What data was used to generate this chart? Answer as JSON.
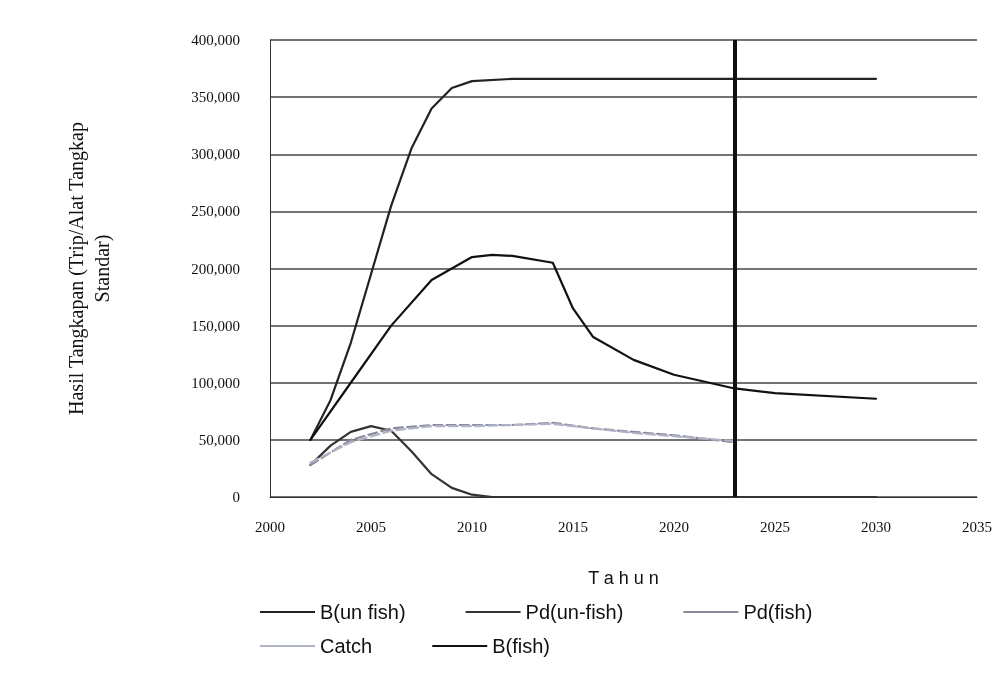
{
  "chart_data": {
    "type": "line",
    "xlabel": "T a h u n",
    "ylabel": "Hasil Tangkapan (Trip/Alat Tangkap\nStandar)",
    "xlim": [
      2000,
      2035
    ],
    "xticks": [
      2000,
      2005,
      2010,
      2015,
      2020,
      2025,
      2030,
      2035
    ],
    "ylim": [
      0,
      400000
    ],
    "yticks": [
      {
        "value": 0,
        "label": "0"
      },
      {
        "value": 50000,
        "label": "50,000"
      },
      {
        "value": 100000,
        "label": "100,000"
      },
      {
        "value": 150000,
        "label": "150,000"
      },
      {
        "value": 200000,
        "label": "200,000"
      },
      {
        "value": 250000,
        "label": "250,000"
      },
      {
        "value": 300000,
        "label": "300,000"
      },
      {
        "value": 350000,
        "label": "350,000"
      },
      {
        "value": 400000,
        "label": "400,000"
      }
    ],
    "grid": "y",
    "legend": "bottom",
    "marker": "none",
    "ref_lines": [
      {
        "axis": "x",
        "value": 2023,
        "color": "#111111"
      }
    ],
    "series": [
      {
        "name": "B(un fish)",
        "color": "#222222",
        "line_style": "solid",
        "x": [
          2002,
          2003,
          2004,
          2005,
          2006,
          2007,
          2008,
          2009,
          2010,
          2012,
          2015,
          2020,
          2025,
          2030
        ],
        "values": [
          50000,
          85000,
          135000,
          195000,
          255000,
          305000,
          340000,
          358000,
          364000,
          366000,
          366000,
          366000,
          366000,
          366000
        ]
      },
      {
        "name": "Pd(un-fish)",
        "color": "#333333",
        "line_style": "solid",
        "x": [
          2002,
          2003,
          2004,
          2005,
          2006,
          2007,
          2008,
          2009,
          2010,
          2011,
          2015,
          2020,
          2025,
          2030
        ],
        "values": [
          28000,
          45000,
          57000,
          62000,
          58000,
          40000,
          20000,
          8000,
          2000,
          0,
          0,
          0,
          0,
          0
        ]
      },
      {
        "name": "Pd(fish)",
        "color": "#8a8a9a",
        "line_style": "dashed",
        "x": [
          2002,
          2004,
          2006,
          2008,
          2010,
          2012,
          2014,
          2016,
          2018,
          2020,
          2023
        ],
        "values": [
          28000,
          50000,
          60000,
          63000,
          63000,
          63000,
          65000,
          60000,
          57000,
          54000,
          48000
        ]
      },
      {
        "name": "Catch",
        "color": "#b0b4c8",
        "line_style": "dashed",
        "x": [
          2002,
          2004,
          2006,
          2008,
          2010,
          2014,
          2018,
          2023
        ],
        "values": [
          30000,
          48000,
          58000,
          62000,
          62000,
          64000,
          56000,
          49000
        ]
      },
      {
        "name": "B(fish)",
        "color": "#111111",
        "line_style": "solid",
        "x": [
          2002,
          2004,
          2006,
          2008,
          2010,
          2011,
          2012,
          2014,
          2015,
          2016,
          2018,
          2020,
          2023,
          2025,
          2030
        ],
        "values": [
          50000,
          100000,
          150000,
          190000,
          210000,
          212000,
          211000,
          205000,
          165000,
          140000,
          120000,
          107000,
          95000,
          91000,
          86000
        ]
      }
    ]
  }
}
